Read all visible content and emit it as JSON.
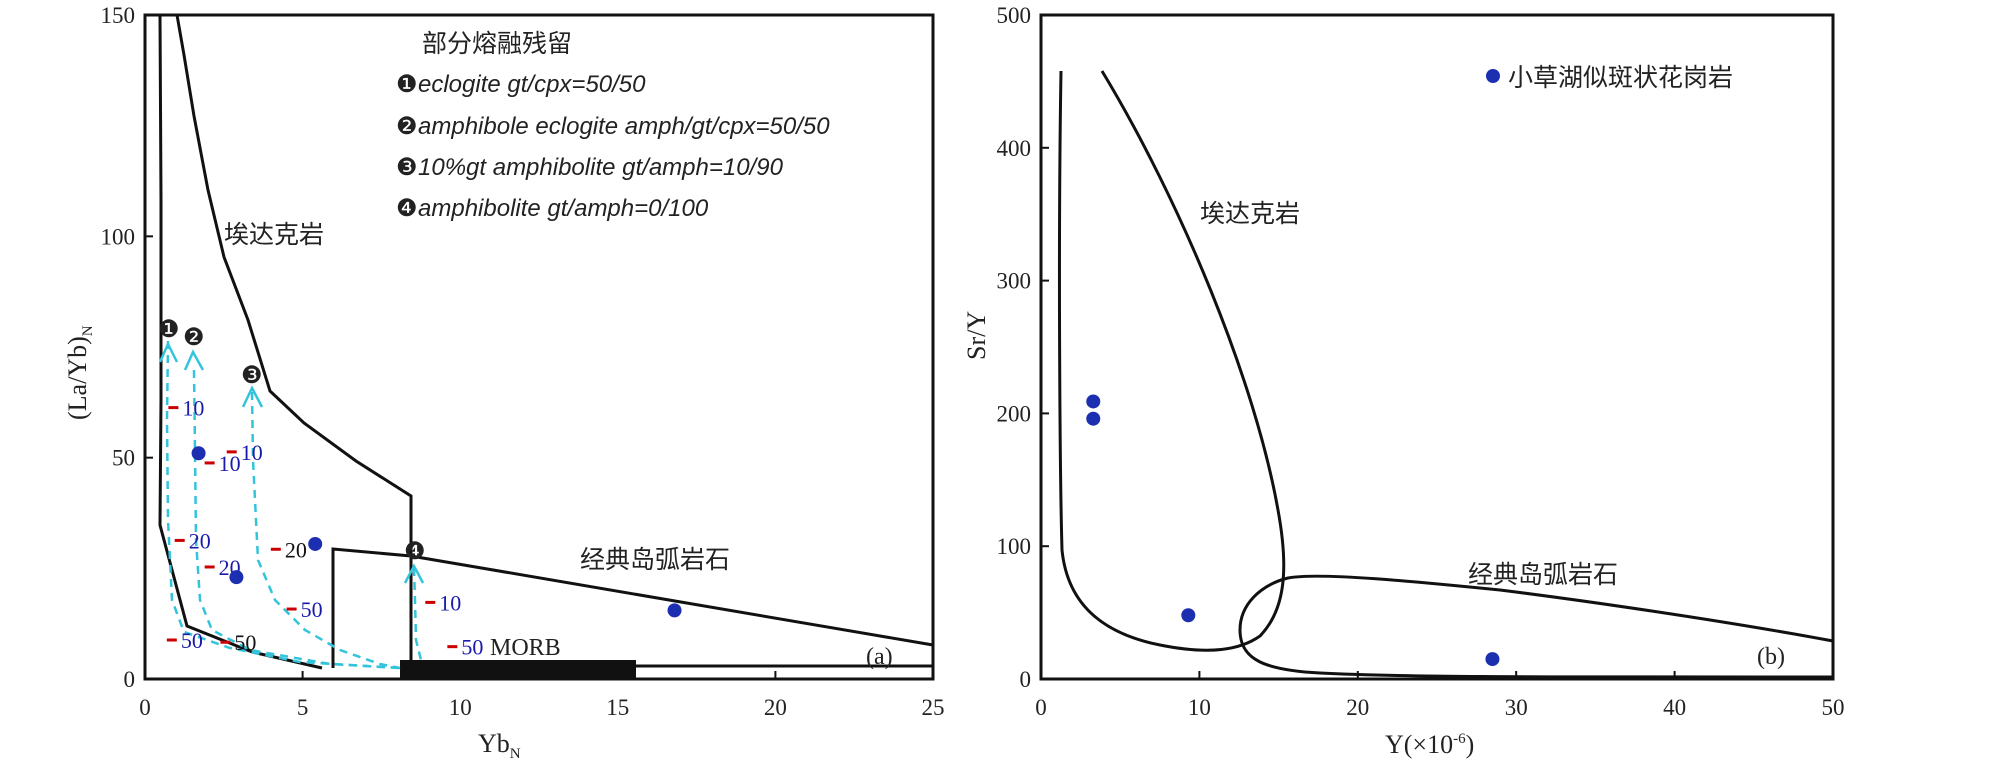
{
  "chart_data": [
    {
      "type": "scatter",
      "panel": "(a)",
      "xlabel": "Yb",
      "xlabel_sub": "N",
      "ylabel": "(La/Yb)",
      "ylabel_sub": "N",
      "xlim": [
        0,
        25
      ],
      "ylim": [
        0,
        150
      ],
      "x_ticks": [
        0,
        5,
        10,
        15,
        20,
        25
      ],
      "y_ticks": [
        0,
        50,
        100,
        150
      ],
      "grid": false,
      "series": [
        {
          "name": "小草湖似斑状花岗岩",
          "x": [
            1.7,
            2.9,
            5.4,
            16.8
          ],
          "y": [
            51,
            23,
            30.5,
            15.5
          ]
        }
      ],
      "fields": [
        {
          "label": "埃达克岩",
          "label_xy": [
            4.7,
            99
          ]
        },
        {
          "label": "经典岛弧岩石",
          "label_xy": [
            15.6,
            26
          ]
        },
        {
          "label": "MORB",
          "label_xy": [
            12.0,
            6.5
          ]
        }
      ],
      "legend_title": "部分熔融残留",
      "legend_items": [
        {
          "marker": "❶",
          "text": "eclogite  gt/cpx=50/50"
        },
        {
          "marker": "❷",
          "text": "amphibole eclogite  amph/gt/cpx=50/50"
        },
        {
          "marker": "❸",
          "text": "10%gt amphibolite  gt/amph=10/90"
        },
        {
          "marker": "❹",
          "text": "amphibolite  gt/amph=0/100"
        }
      ],
      "trend_markers": [
        "❶",
        "❷",
        "❸",
        "❹"
      ],
      "melt_fraction_labels": [
        {
          "text": "10",
          "x": 1.25,
          "y": 59.5
        },
        {
          "text": "10",
          "x": 2.4,
          "y": 47
        },
        {
          "text": "10",
          "x": 3.1,
          "y": 49.5
        },
        {
          "text": "10",
          "x": 9.4,
          "y": 15.5
        },
        {
          "text": "20",
          "x": 1.45,
          "y": 29.5
        },
        {
          "text": "20",
          "x": 2.4,
          "y": 23.5
        },
        {
          "text": "20",
          "x": 4.5,
          "y": 27.5
        },
        {
          "text": "50",
          "x": 5.0,
          "y": 14
        },
        {
          "text": "50",
          "x": 1.2,
          "y": 7
        },
        {
          "text": "50",
          "x": 2.9,
          "y": 6.5
        },
        {
          "text": "50",
          "x": 10.1,
          "y": 5.5
        }
      ],
      "label_colors": {
        "blue": "#1a1aaa",
        "black": "#111111"
      },
      "tick_color": "#cc0000",
      "curve_color": "#33c4dc",
      "point_color": "#1c2fb0"
    },
    {
      "type": "scatter",
      "panel": "(b)",
      "xlabel": "Y(×10",
      "xlabel_sup": "-6",
      "xlabel_tail": ")",
      "ylabel": "Sr/Y",
      "xlim": [
        0,
        50
      ],
      "ylim": [
        0,
        500
      ],
      "x_ticks": [
        0,
        10,
        20,
        30,
        40,
        50
      ],
      "y_ticks": [
        0,
        100,
        200,
        300,
        400,
        500
      ],
      "grid": false,
      "series": [
        {
          "name": "小草湖似斑状花岗岩",
          "x": [
            3.3,
            3.3,
            9.3,
            28.5
          ],
          "y": [
            209,
            196,
            48,
            15
          ]
        }
      ],
      "legend_placement": "top-right",
      "fields": [
        {
          "label": "埃达克岩",
          "label_xy": [
            11,
            345
          ]
        },
        {
          "label": "经典岛弧岩石",
          "label_xy": [
            31.5,
            77
          ]
        }
      ]
    }
  ]
}
